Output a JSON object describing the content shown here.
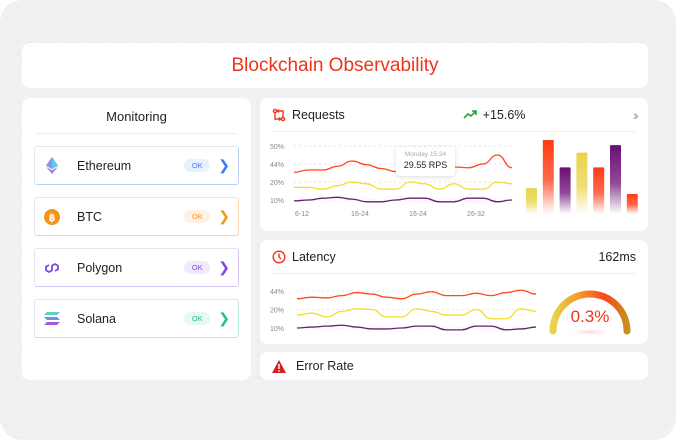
{
  "title": "Blockchain Observability",
  "monitoring": {
    "heading": "Monitoring",
    "items": [
      {
        "name": "Ethereum",
        "status": "OK",
        "icon": "ethereum-icon",
        "color": "#3d7bf0",
        "badge_bg": "#eaf1fd",
        "grad": "#bcd0f6"
      },
      {
        "name": "BTC",
        "status": "OK",
        "icon": "bitcoin-icon",
        "color": "#f7931a",
        "badge_bg": "#fdf0e6",
        "grad": "#fbd3b0"
      },
      {
        "name": "Polygon",
        "status": "OK",
        "icon": "polygon-icon",
        "color": "#8247e5",
        "badge_bg": "#f1eafc",
        "grad": "#d9c6f6"
      },
      {
        "name": "Solana",
        "status": "OK",
        "icon": "solana-icon",
        "color": "#1fc391",
        "badge_bg": "#e7f8f1",
        "grad": "#b4ecd9"
      }
    ]
  },
  "requests": {
    "label": "Requests",
    "trend": "+15.6%",
    "tooltip": {
      "time": "Monday 15:24",
      "value": "29.55 RPS"
    },
    "chart_data": {
      "type": "line",
      "y_ticks": [
        50,
        44,
        20,
        10
      ],
      "y_tick_labels": [
        "50%",
        "44%",
        "20%",
        "10%"
      ],
      "x_tick_labels": [
        "6-12",
        "16-24",
        "16-24",
        "26-32"
      ],
      "grid": true,
      "series": [
        {
          "color": "#ff4a1c",
          "values": [
            33,
            36,
            36,
            41,
            45,
            43,
            38,
            34,
            40,
            46,
            42,
            40,
            39,
            44,
            47,
            39
          ]
        },
        {
          "color": "#f5dc2a",
          "values": [
            17,
            17,
            16,
            18,
            20,
            19,
            16,
            16,
            20,
            19,
            16,
            19,
            16,
            16,
            20,
            19
          ]
        },
        {
          "color": "#6e1a7a",
          "values": [
            9.5,
            10,
            11,
            11.5,
            10.5,
            9,
            9,
            10,
            11,
            11,
            9,
            9,
            11,
            11,
            9,
            10
          ]
        }
      ]
    },
    "bars": {
      "type": "bar",
      "values": [
        0.35,
        1.0,
        0.63,
        0.83,
        0.63,
        0.93,
        0.27
      ],
      "colors": [
        "#e8d44a",
        "#ff3a12",
        "#6a0f74",
        "#e8d44a",
        "#ff3a12",
        "#6a0f74",
        "#ff3a12"
      ]
    }
  },
  "latency": {
    "label": "Latency",
    "value": "162ms",
    "chart_data": {
      "type": "line",
      "y_ticks": [
        44,
        20,
        10
      ],
      "y_tick_labels": [
        "44%",
        "20%",
        "10%"
      ],
      "grid": true,
      "series": [
        {
          "color": "#ff4a1c",
          "values": [
            34,
            36,
            35,
            38,
            42,
            40,
            36,
            34,
            40,
            43,
            38,
            38,
            41,
            38,
            42,
            45,
            40
          ]
        },
        {
          "color": "#f5dc2a",
          "values": [
            17,
            18,
            16,
            19,
            21,
            20,
            16,
            16,
            21,
            19,
            17,
            17,
            20,
            15,
            15,
            21,
            19
          ]
        },
        {
          "color": "#6e1a7a",
          "values": [
            10,
            10.5,
            11,
            11.5,
            10.5,
            9.5,
            9.5,
            10,
            11,
            11,
            9,
            9,
            11,
            11,
            9,
            9.5,
            10.5
          ]
        }
      ]
    },
    "gauge": {
      "value": "0.3%"
    }
  },
  "error_rate": {
    "label": "Error Rate"
  }
}
